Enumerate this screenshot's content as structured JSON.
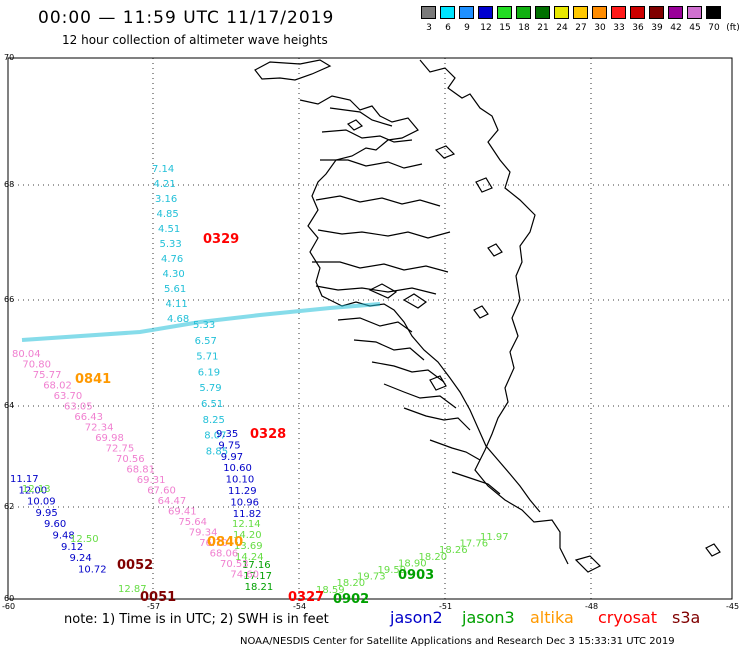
{
  "title": "00:00 — 11:59 UTC 11/17/2019",
  "subtitle": "12 hour collection of altimeter wave heights",
  "scale": {
    "unit": "(ft)",
    "bins": [
      {
        "label": "3",
        "color": "#7a7a7a"
      },
      {
        "label": "6",
        "color": "#00e5ff"
      },
      {
        "label": "9",
        "color": "#1e90ff"
      },
      {
        "label": "12",
        "color": "#0000d0"
      },
      {
        "label": "15",
        "color": "#22dd22"
      },
      {
        "label": "18",
        "color": "#10b010"
      },
      {
        "label": "21",
        "color": "#007000"
      },
      {
        "label": "24",
        "color": "#e8e800"
      },
      {
        "label": "27",
        "color": "#ffc800"
      },
      {
        "label": "30",
        "color": "#ff8c00"
      },
      {
        "label": "33",
        "color": "#ff1a1a"
      },
      {
        "label": "36",
        "color": "#cc0000"
      },
      {
        "label": "39",
        "color": "#800000"
      },
      {
        "label": "42",
        "color": "#990099"
      },
      {
        "label": "45",
        "color": "#d070d0"
      },
      {
        "label": "70",
        "color": "#000000"
      }
    ]
  },
  "lat_labels": [
    "70",
    "68",
    "66",
    "64",
    "62",
    "60"
  ],
  "lon_labels": [
    "-60",
    "-57",
    "-54",
    "-51",
    "-48",
    "-45"
  ],
  "colors": {
    "cyan": "#22c0d8",
    "blue": "#0000c8",
    "pink": "#f080d0",
    "lgreen": "#66dd44",
    "green": "#00a000",
    "orange": "#ff9900",
    "red": "#ff0000",
    "dred": "#800000"
  },
  "passes": [
    {
      "label": "0329",
      "color": "red"
    },
    {
      "label": "0841",
      "color": "orange"
    },
    {
      "label": "0328",
      "color": "red"
    },
    {
      "label": "0840",
      "color": "orange"
    },
    {
      "label": "0052",
      "color": "dred"
    },
    {
      "label": "0051",
      "color": "dred"
    },
    {
      "label": "0327",
      "color": "red"
    },
    {
      "label": "0902",
      "color": "green"
    },
    {
      "label": "0903",
      "color": "green"
    }
  ],
  "tracks": [
    {
      "name": "jason3-cyan-north",
      "color": "cyan",
      "values": [
        "7.14",
        "4.21",
        "3.16",
        "4.85",
        "4.51",
        "5.33",
        "4.76",
        "4.30",
        "5.61",
        "4.11",
        "4.68"
      ]
    },
    {
      "name": "cyan-south",
      "color": "cyan",
      "values": [
        "5.33",
        "6.57",
        "5.71",
        "6.19",
        "5.79",
        "6.51",
        "8.25",
        "8.07",
        "8.85"
      ]
    },
    {
      "name": "blue-south",
      "color": "blue",
      "values": [
        "9.35",
        "9.75",
        "9.97",
        "10.60",
        "10.10",
        "11.29",
        "10.96",
        "11.82"
      ]
    },
    {
      "name": "lgreen-south",
      "color": "lgreen",
      "values": [
        "12.14",
        "14.20",
        "13.69",
        "14.24"
      ]
    },
    {
      "name": "green-south",
      "color": "green",
      "values": [
        "17.16",
        "17.17",
        "18.21"
      ]
    },
    {
      "name": "pink-diag",
      "color": "pink",
      "values": [
        "80.04",
        "70.80",
        "75.77",
        "68.02",
        "63.70",
        "63.05",
        "66.43",
        "72.34",
        "69.98",
        "72.75",
        "70.56",
        "68.81",
        "69.31",
        "67.60",
        "64.47",
        "69.41",
        "75.64",
        "79.34",
        "76.70",
        "68.06",
        "70.53",
        "74.60"
      ]
    },
    {
      "name": "blue-left",
      "color": "blue",
      "values": [
        "11.17",
        "12.00",
        "10.09",
        "9.95",
        "9.60",
        "9.48",
        "9.12",
        "9.24",
        "10.72"
      ]
    },
    {
      "name": "lgreen-left",
      "color": "lgreen",
      "values": [
        "12.13",
        "12.50",
        "12.87"
      ]
    },
    {
      "name": "cross",
      "color": "lgreen",
      "values": [
        "11.97",
        "17.76",
        "18.26",
        "18.20",
        "18.90",
        "19.59",
        "19.73",
        "18.20",
        "18.59"
      ]
    }
  ],
  "note": "note:  1) Time is in UTC;  2) SWH is in feet",
  "legend": [
    {
      "label": "jason2",
      "color": "#0000c8"
    },
    {
      "label": "jason3",
      "color": "#00a000"
    },
    {
      "label": "altika",
      "color": "#ff9900"
    },
    {
      "label": "cryosat",
      "color": "#ff0000"
    },
    {
      "label": "s3a",
      "color": "#800000"
    }
  ],
  "credit": "NOAA/NESDIS Center for Satellite Applications and Research     Dec  3 15:33:31 UTC 2019"
}
